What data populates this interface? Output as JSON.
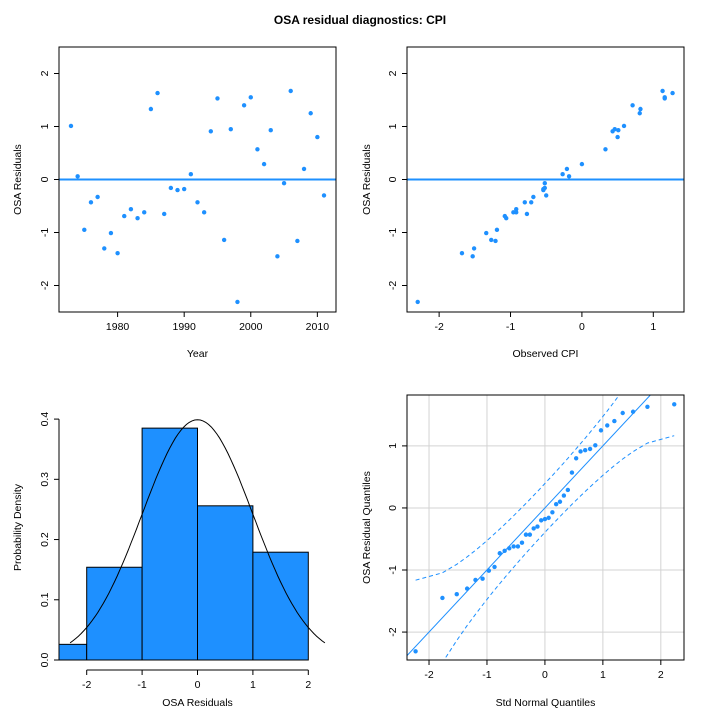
{
  "title": "OSA residual diagnostics: CPI",
  "colors": {
    "points": "#1E90FF",
    "bars": "#1E90FF",
    "grid": "#D3D3D3",
    "axis": "#000000"
  },
  "chart_data": [
    {
      "type": "scatter",
      "xlabel": "Year",
      "ylabel": "OSA Residuals",
      "xlim": [
        1971.2,
        2012.8
      ],
      "ylim": [
        -2.5,
        2.5
      ],
      "xticks": [
        "1980",
        "1990",
        "2000",
        "2010"
      ],
      "yticks": [
        "-2",
        "-1",
        "0",
        "1",
        "2"
      ],
      "hline": 0,
      "grid": false,
      "x": [
        1973,
        1974,
        1975,
        1976,
        1977,
        1978,
        1979,
        1980,
        1981,
        1982,
        1983,
        1984,
        1985,
        1986,
        1987,
        1988,
        1989,
        1990,
        1991,
        1992,
        1993,
        1994,
        1995,
        1996,
        1997,
        1998,
        1999,
        2000,
        2001,
        2002,
        2003,
        2004,
        2005,
        2006,
        2007,
        2008,
        2009,
        2010,
        2011
      ],
      "y": [
        1.01,
        0.06,
        -0.95,
        -0.43,
        -0.33,
        -1.3,
        -1.01,
        -1.39,
        -0.69,
        -0.56,
        -0.73,
        -0.62,
        1.33,
        1.63,
        -0.65,
        -0.16,
        -0.2,
        -0.18,
        0.1,
        -0.43,
        -0.62,
        0.91,
        1.53,
        -1.14,
        0.95,
        -2.31,
        1.4,
        1.55,
        0.57,
        0.29,
        0.93,
        -1.45,
        -0.07,
        1.67,
        -1.16,
        0.2,
        1.25,
        0.8,
        -0.3
      ]
    },
    {
      "type": "scatter",
      "xlabel": "Observed CPI",
      "ylabel": "OSA Residuals",
      "xlim": [
        -2.45,
        1.43
      ],
      "ylim": [
        -2.5,
        2.5
      ],
      "xticks": [
        "-2",
        "-1",
        "0",
        "1"
      ],
      "yticks": [
        "-2",
        "-1",
        "0",
        "1",
        "2"
      ],
      "hline": 0,
      "grid": false,
      "x": [
        -2.3,
        -1.68,
        -1.53,
        -1.51,
        -1.34,
        -1.27,
        -1.21,
        -1.19,
        -1.08,
        -1.06,
        -0.96,
        -0.92,
        -0.92,
        -0.8,
        -0.77,
        -0.71,
        -0.68,
        -0.54,
        -0.52,
        -0.52,
        -0.54,
        -0.5,
        -0.27,
        -0.21,
        -0.18,
        0.0,
        0.33,
        0.43,
        0.46,
        0.51,
        0.5,
        0.59,
        0.71,
        0.81,
        0.82,
        1.13,
        1.16,
        1.16,
        1.27
      ],
      "y": [
        -2.31,
        -1.39,
        -1.45,
        -1.3,
        -1.01,
        -1.14,
        -1.16,
        -0.95,
        -0.69,
        -0.73,
        -0.62,
        -0.62,
        -0.56,
        -0.43,
        -0.65,
        -0.43,
        -0.33,
        -0.2,
        -0.16,
        -0.07,
        -0.18,
        -0.3,
        0.1,
        0.2,
        0.06,
        0.29,
        0.57,
        0.91,
        0.95,
        0.93,
        0.8,
        1.01,
        1.4,
        1.25,
        1.33,
        1.67,
        1.55,
        1.53,
        1.63
      ]
    },
    {
      "type": "bar",
      "subtype": "histogram",
      "xlabel": "OSA Residuals",
      "ylabel": "Probability Density",
      "xlim": [
        -2.5,
        2.5
      ],
      "ylim": [
        0,
        0.44
      ],
      "xticks": [
        "-2",
        "-1",
        "0",
        "1",
        "2"
      ],
      "yticks": [
        "0.0",
        "0.1",
        "0.2",
        "0.3",
        "0.4"
      ],
      "bins": [
        [
          -3,
          -2
        ],
        [
          -2,
          -1
        ],
        [
          -1,
          0
        ],
        [
          0,
          1
        ],
        [
          1,
          2
        ]
      ],
      "values": [
        0.026,
        0.154,
        0.385,
        0.256,
        0.179
      ],
      "overlay": {
        "type": "line",
        "distribution": "standard normal density",
        "xrange": [
          -2.3,
          2.3
        ]
      }
    },
    {
      "type": "scatter",
      "subtype": "qq",
      "xlabel": "Std Normal Quantiles",
      "ylabel": "OSA Residual Quantiles",
      "xlim": [
        -2.38,
        2.4
      ],
      "ylim": [
        -2.45,
        1.82
      ],
      "xticks": [
        "-2",
        "-1",
        "0",
        "1",
        "2"
      ],
      "yticks": [
        "-2",
        "-1",
        "0",
        "1"
      ],
      "grid": true,
      "reference_line": {
        "slope": 1,
        "intercept": 0
      },
      "confidence_band": 0.95,
      "sample": "residuals of panel 1, sorted"
    }
  ]
}
